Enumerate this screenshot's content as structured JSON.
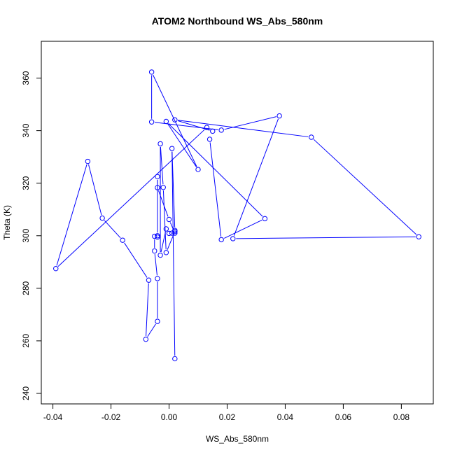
{
  "chart_data": {
    "type": "line",
    "title": "ATOM2 Northbound WS_Abs_580nm",
    "xlabel": "WS_Abs_580nm",
    "ylabel": "Theta (K)",
    "xlim": [
      -0.044,
      0.091
    ],
    "ylim": [
      236,
      374
    ],
    "xticks": [
      -0.04,
      -0.02,
      0.0,
      0.02,
      0.04,
      0.06,
      0.08
    ],
    "xtick_labels": [
      "-0.04",
      "-0.02",
      "0.00",
      "0.02",
      "0.04",
      "0.06",
      "0.08"
    ],
    "yticks": [
      240,
      260,
      280,
      300,
      320,
      340,
      360
    ],
    "ytick_labels": [
      "240",
      "260",
      "280",
      "300",
      "320",
      "340",
      "360"
    ],
    "grid": false,
    "marker": "open-circle",
    "color": "#0000ff",
    "series": [
      {
        "points": [
          [
            0.002,
            253.2
          ],
          [
            0.001,
            333.2
          ],
          [
            0.002,
            302.0
          ],
          [
            0.001,
            301.0
          ],
          [
            0.0,
            300.9
          ],
          [
            -0.001,
            302.6
          ],
          [
            -0.003,
            292.6
          ],
          [
            -0.003,
            335.0
          ],
          [
            -0.002,
            318.4
          ],
          [
            -0.001,
            293.6
          ],
          [
            0.002,
            301.6
          ],
          [
            0.002,
            301.0
          ],
          [
            0.0,
            306.2
          ],
          [
            -0.004,
            318.3
          ],
          [
            -0.004,
            322.5
          ],
          [
            -0.004,
            300.0
          ],
          [
            -0.004,
            299.5
          ],
          [
            -0.005,
            299.8
          ],
          [
            -0.005,
            294.2
          ],
          [
            -0.004,
            283.7
          ],
          [
            -0.004,
            267.4
          ],
          [
            -0.008,
            260.6
          ],
          [
            -0.007,
            283.1
          ],
          [
            -0.016,
            298.3
          ],
          [
            -0.023,
            306.7
          ],
          [
            -0.028,
            328.3
          ],
          [
            -0.039,
            287.5
          ],
          [
            0.013,
            341.2
          ],
          [
            0.015,
            339.8
          ],
          [
            0.002,
            344.1
          ],
          [
            0.049,
            337.5
          ],
          [
            0.086,
            299.6
          ],
          [
            0.022,
            298.9
          ],
          [
            0.038,
            345.6
          ],
          [
            0.018,
            340.2
          ],
          [
            -0.006,
            343.3
          ],
          [
            -0.006,
            362.3
          ],
          [
            0.01,
            325.2
          ],
          [
            -0.001,
            343.5
          ],
          [
            0.033,
            306.5
          ],
          [
            0.018,
            298.5
          ],
          [
            0.014,
            336.7
          ]
        ]
      }
    ]
  }
}
